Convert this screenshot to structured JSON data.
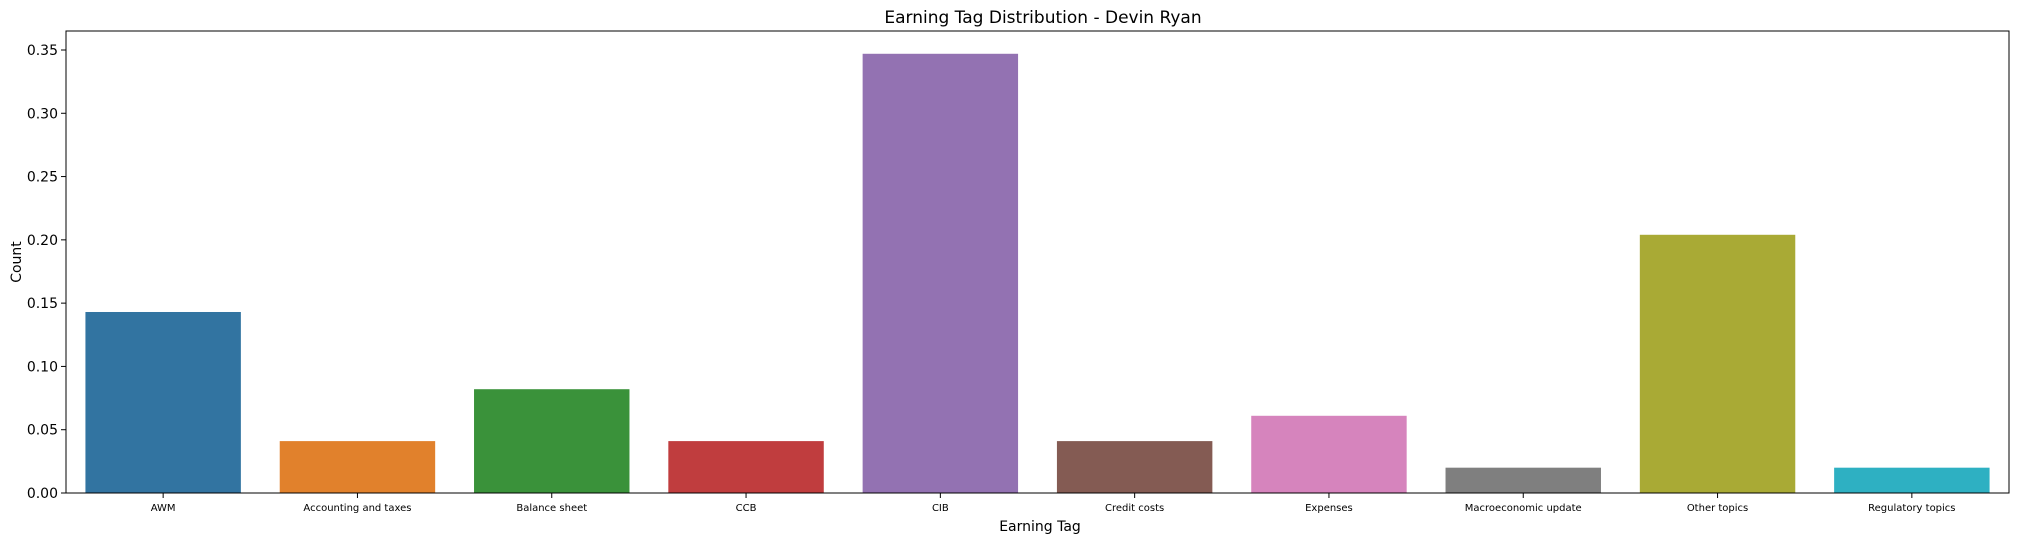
{
  "chart_data": {
    "type": "bar",
    "title": "Earning Tag Distribution - Devin Ryan",
    "xlabel": "Earning Tag",
    "ylabel": "Count",
    "ylim": [
      0,
      0.365
    ],
    "yticks": [
      "0.00",
      "0.05",
      "0.10",
      "0.15",
      "0.20",
      "0.25",
      "0.30",
      "0.35"
    ],
    "grid": false,
    "legend": "none",
    "categories": [
      "AWM",
      "Accounting and taxes",
      "Balance sheet",
      "CCB",
      "CIB",
      "Credit costs",
      "Expenses",
      "Macroeconomic update",
      "Other topics",
      "Regulatory topics"
    ],
    "values": [
      0.143,
      0.041,
      0.082,
      0.041,
      0.347,
      0.041,
      0.061,
      0.02,
      0.204,
      0.02
    ],
    "colors": [
      "#3274a1",
      "#e1812c",
      "#3a923a",
      "#c03d3e",
      "#9372b2",
      "#845b53",
      "#d684bd",
      "#7f7f7f",
      "#a9aa35",
      "#2eb0c2"
    ]
  }
}
